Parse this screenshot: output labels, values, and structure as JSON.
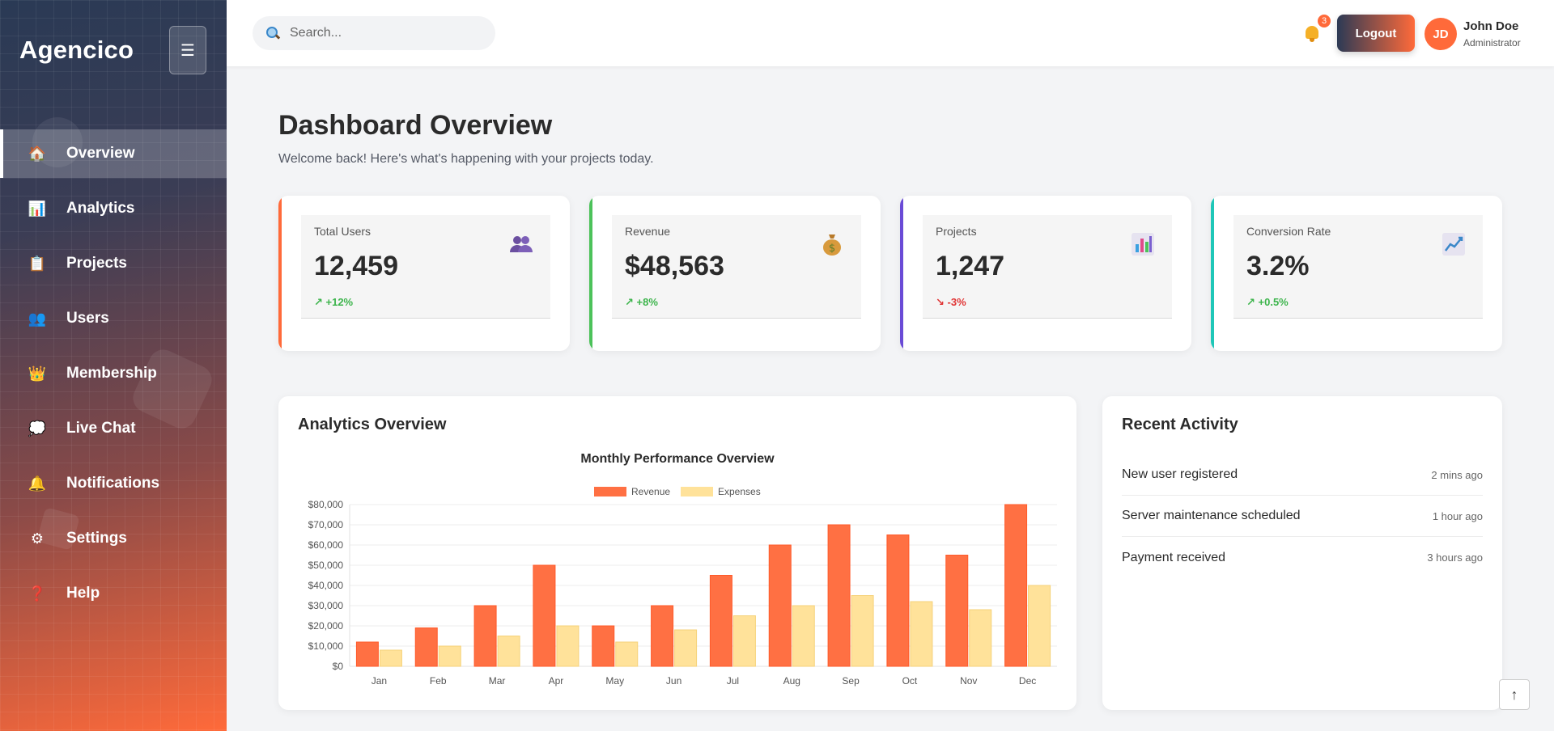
{
  "sidebar": {
    "brand": "Agencico",
    "toggle_icon": "☰",
    "items": [
      {
        "label": "Overview",
        "icon": "house-icon",
        "glyph": "🏠",
        "active": true
      },
      {
        "label": "Analytics",
        "icon": "bar-chart-icon",
        "glyph": "📊"
      },
      {
        "label": "Projects",
        "icon": "clipboard-icon",
        "glyph": "📋"
      },
      {
        "label": "Users",
        "icon": "users-icon",
        "glyph": "👥"
      },
      {
        "label": "Membership",
        "icon": "crown-icon",
        "glyph": "👑"
      },
      {
        "label": "Live Chat",
        "icon": "speech-bubble-icon",
        "glyph": "💭"
      },
      {
        "label": "Notifications",
        "icon": "bell-icon",
        "glyph": "🔔"
      },
      {
        "label": "Settings",
        "icon": "gear-icon",
        "glyph": "⚙"
      },
      {
        "label": "Help",
        "icon": "question-icon",
        "glyph": "❓"
      }
    ]
  },
  "header": {
    "search_placeholder": "Search...",
    "notification_count": "3",
    "logout_label": "Logout",
    "user": {
      "initials": "JD",
      "name": "John Doe",
      "role": "Administrator"
    }
  },
  "main": {
    "title": "Dashboard Overview",
    "subtitle": "Welcome back! Here's what's happening with your projects today."
  },
  "stats": [
    {
      "label": "Total Users",
      "value": "12,459",
      "change": "↗ +12%",
      "trend": "up",
      "accent": "#ff6a3a",
      "icon": "users-icon"
    },
    {
      "label": "Revenue",
      "value": "$48,563",
      "change": "↗ +8%",
      "trend": "up",
      "accent": "#4cc25a",
      "icon": "money-bag-icon"
    },
    {
      "label": "Projects",
      "value": "1,247",
      "change": "↘ -3%",
      "trend": "down",
      "accent": "#6a4bd6",
      "icon": "bar-chart-icon"
    },
    {
      "label": "Conversion Rate",
      "value": "3.2%",
      "change": "↗ +0.5%",
      "trend": "up",
      "accent": "#1fc7b8",
      "icon": "line-chart-icon"
    }
  ],
  "analytics": {
    "panel_title": "Analytics Overview"
  },
  "chart_data": {
    "type": "bar",
    "title": "Monthly Performance Overview",
    "categories": [
      "Jan",
      "Feb",
      "Mar",
      "Apr",
      "May",
      "Jun",
      "Jul",
      "Aug",
      "Sep",
      "Oct",
      "Nov",
      "Dec"
    ],
    "series": [
      {
        "name": "Revenue",
        "color": "#ff7043",
        "values": [
          12000,
          19000,
          30000,
          50000,
          20000,
          30000,
          45000,
          60000,
          70000,
          65000,
          55000,
          80000
        ]
      },
      {
        "name": "Expenses",
        "color": "#ffe29a",
        "values": [
          8000,
          10000,
          15000,
          20000,
          12000,
          18000,
          25000,
          30000,
          35000,
          32000,
          28000,
          40000
        ]
      }
    ],
    "ylim": [
      0,
      80000
    ],
    "yticks": [
      "$0",
      "$10,000",
      "$20,000",
      "$30,000",
      "$40,000",
      "$50,000",
      "$60,000",
      "$70,000",
      "$80,000"
    ],
    "legend": "top",
    "grid": true
  },
  "activity": {
    "panel_title": "Recent Activity",
    "items": [
      {
        "text": "New user registered",
        "time": "2 mins ago"
      },
      {
        "text": "Server maintenance scheduled",
        "time": "1 hour ago"
      },
      {
        "text": "Payment received",
        "time": "3 hours ago"
      }
    ]
  },
  "scroll_top_glyph": "↑"
}
